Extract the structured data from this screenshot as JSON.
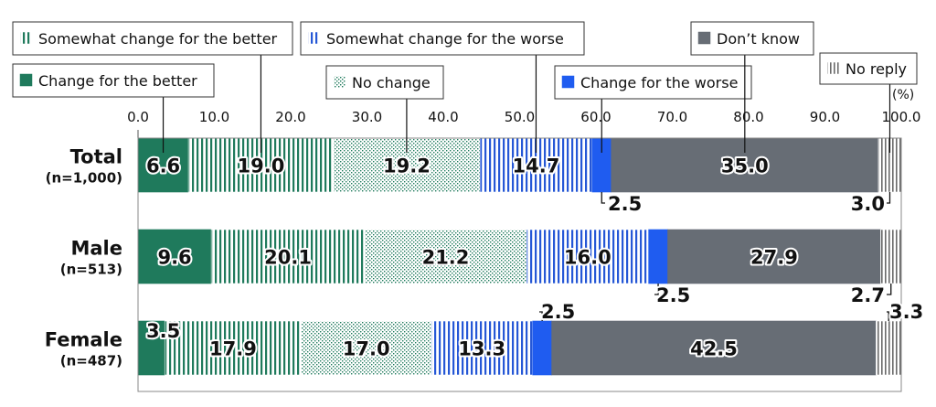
{
  "chart_data": {
    "type": "bar",
    "orientation": "horizontal",
    "stacked": true,
    "unit_label": "(%)",
    "xlim": [
      0,
      100
    ],
    "x_ticks": [
      "0.0",
      "10.0",
      "20.0",
      "30.0",
      "40.0",
      "50.0",
      "60.0",
      "70.0",
      "80.0",
      "90.0",
      "100.0"
    ],
    "categories": [
      {
        "name": "Total",
        "n": "(n=1,000)"
      },
      {
        "name": "Male",
        "n": "(n=513)"
      },
      {
        "name": "Female",
        "n": "(n=487)"
      }
    ],
    "series": [
      {
        "name": "Change for the better",
        "color": "#1f7a5c",
        "pattern": "solid",
        "values": [
          6.6,
          9.6,
          3.5
        ]
      },
      {
        "name": "Somewhat change for the better",
        "color": "#1f7a5c",
        "pattern": "vstripe",
        "values": [
          19.0,
          20.1,
          17.9
        ]
      },
      {
        "name": "No change",
        "color": "#1f7a5c",
        "pattern": "dots",
        "values": [
          19.2,
          21.2,
          17.0
        ]
      },
      {
        "name": "Somewhat change for the worse",
        "color": "#2557d6",
        "pattern": "vstripe",
        "values": [
          14.7,
          16.0,
          13.3
        ]
      },
      {
        "name": "Change for the worse",
        "color": "#1f5cf0",
        "pattern": "solid",
        "values": [
          2.5,
          2.5,
          2.5
        ]
      },
      {
        "name": "Don’t know",
        "color": "#676d75",
        "pattern": "solid",
        "values": [
          35.0,
          27.9,
          42.5
        ]
      },
      {
        "name": "No reply",
        "color": "#6a6a6a",
        "pattern": "thinstripe",
        "values": [
          3.0,
          2.7,
          3.3
        ]
      }
    ],
    "value_labels": [
      [
        "6.6",
        "19.0",
        "19.2",
        "14.7",
        "2.5",
        "35.0",
        "3.0"
      ],
      [
        "9.6",
        "20.1",
        "21.2",
        "16.0",
        "2.5",
        "27.9",
        "2.7"
      ],
      [
        "3.5",
        "17.9",
        "17.0",
        "13.3",
        "2.5",
        "42.5",
        "3.3"
      ]
    ],
    "grid": false
  }
}
